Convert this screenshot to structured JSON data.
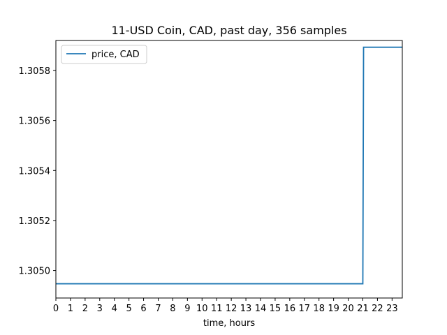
{
  "chart_data": {
    "type": "line",
    "title": "11-USD Coin, CAD, past day, 356 samples",
    "xlabel": "time, hours",
    "ylabel": "",
    "xlim": [
      0,
      23.7
    ],
    "ylim": [
      1.30489,
      1.30592
    ],
    "x_ticks": [
      "0",
      "1",
      "2",
      "3",
      "4",
      "5",
      "6",
      "7",
      "8",
      "9",
      "10",
      "11",
      "12",
      "13",
      "14",
      "15",
      "16",
      "17",
      "18",
      "19",
      "20",
      "21",
      "22",
      "23"
    ],
    "y_ticks": [
      "1.3050",
      "1.3052",
      "1.3054",
      "1.3056",
      "1.3058"
    ],
    "legend": "top-left",
    "grid": false,
    "series": [
      {
        "name": "price, CAD",
        "color": "#1f77b4",
        "x": [
          0,
          21.0,
          21.05,
          23.7
        ],
        "y": [
          1.304947,
          1.304947,
          1.305893,
          1.305893
        ]
      }
    ]
  }
}
